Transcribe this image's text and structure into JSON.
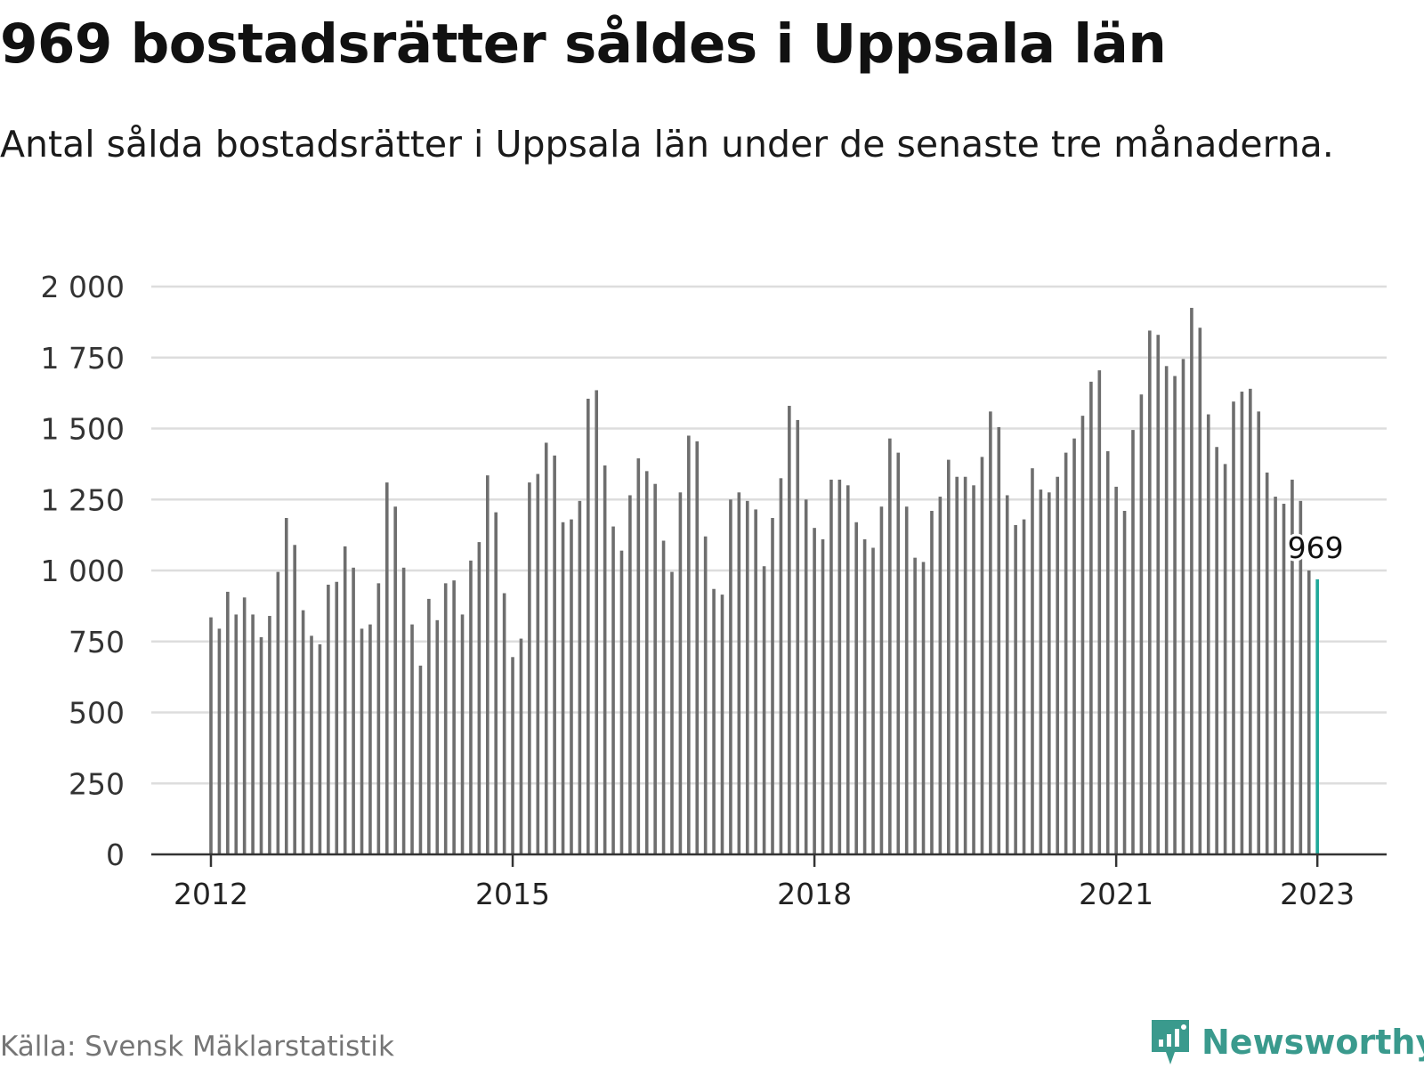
{
  "title": "969 bostadsrätter såldes i Uppsala län",
  "subtitle": "Antal sålda bostadsrätter i Uppsala län under de senaste tre månaderna.",
  "source": "Källa: Svensk Mäklarstatistik",
  "brand": {
    "name": "Newsworthy",
    "icon": "newsworthy-logo-icon",
    "color": "#3a9a8d"
  },
  "colors": {
    "bar": "#6e6e6e",
    "highlight": "#1fa99a",
    "grid": "#dddddd",
    "axis": "#333333"
  },
  "chart_data": {
    "type": "bar",
    "y_ticks": [
      0,
      250,
      500,
      750,
      1000,
      1250,
      1500,
      1750,
      2000
    ],
    "y_tick_labels": [
      "0",
      "250",
      "500",
      "750",
      "1 000",
      "1 250",
      "1 500",
      "1 750",
      "2 000"
    ],
    "ylim": [
      0,
      2000
    ],
    "x_ticks": [
      "2012",
      "2015",
      "2018",
      "2021",
      "2023"
    ],
    "grid": true,
    "highlight_label": "969",
    "series": [
      {
        "values": [
          835,
          795,
          925,
          845,
          905,
          845,
          765,
          840,
          995,
          1185,
          1090,
          860,
          770,
          740,
          950,
          960,
          1085,
          1010,
          795,
          810,
          955,
          1310,
          1225,
          1010,
          810,
          665,
          900,
          825,
          955,
          965,
          845,
          1035,
          1100,
          1335,
          1205,
          920,
          695,
          760,
          1310,
          1340,
          1450,
          1405,
          1170,
          1180,
          1245,
          1605,
          1635,
          1370,
          1155,
          1070,
          1265,
          1395,
          1350,
          1305,
          1105,
          995,
          1275,
          1475,
          1455,
          1120,
          935,
          915,
          1250,
          1275,
          1245,
          1215,
          1015,
          1185,
          1325,
          1580,
          1530,
          1250,
          1150,
          1110,
          1320,
          1320,
          1300,
          1170,
          1110,
          1080,
          1225,
          1465,
          1415,
          1225,
          1045,
          1030,
          1210,
          1260,
          1390,
          1330,
          1330,
          1300,
          1400,
          1560,
          1505,
          1265,
          1160,
          1180,
          1360,
          1285,
          1275,
          1330,
          1415,
          1465,
          1545,
          1665,
          1705,
          1420,
          1295,
          1210,
          1495,
          1620,
          1845,
          1830,
          1720,
          1685,
          1745,
          1925,
          1855,
          1550,
          1435,
          1375,
          1595,
          1630,
          1640,
          1560,
          1345,
          1260,
          1235,
          1320,
          1245,
          1000,
          969
        ]
      }
    ]
  }
}
